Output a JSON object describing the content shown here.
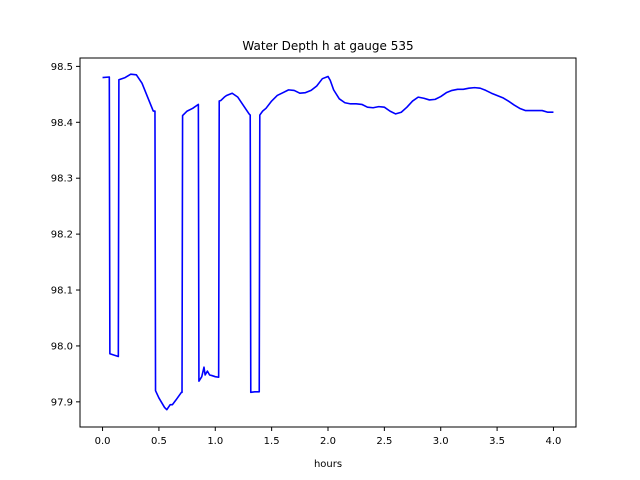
{
  "chart_data": {
    "type": "line",
    "title": "Water Depth h at gauge 535",
    "xlabel": "hours",
    "ylabel": "",
    "xlim": [
      -0.2,
      4.2
    ],
    "ylim": [
      97.855,
      98.515
    ],
    "xticks": [
      0.0,
      0.5,
      1.0,
      1.5,
      2.0,
      2.5,
      3.0,
      3.5,
      4.0
    ],
    "xtick_labels": [
      "0.0",
      "0.5",
      "1.0",
      "1.5",
      "2.0",
      "2.5",
      "3.0",
      "3.5",
      "4.0"
    ],
    "yticks": [
      97.9,
      98.0,
      98.1,
      98.2,
      98.3,
      98.4,
      98.5
    ],
    "ytick_labels": [
      "97.9",
      "98.0",
      "98.1",
      "98.2",
      "98.3",
      "98.4",
      "98.5"
    ],
    "grid": false,
    "series": [
      {
        "color": "#0000ff",
        "x": [
          0.0,
          0.06,
          0.065,
          0.14,
          0.145,
          0.2,
          0.25,
          0.3,
          0.35,
          0.4,
          0.45,
          0.465,
          0.47,
          0.5,
          0.55,
          0.57,
          0.6,
          0.62,
          0.65,
          0.7,
          0.705,
          0.71,
          0.75,
          0.8,
          0.85,
          0.855,
          0.88,
          0.9,
          0.91,
          0.93,
          0.95,
          0.97,
          1.0,
          1.03,
          1.035,
          1.05,
          1.08,
          1.1,
          1.15,
          1.2,
          1.25,
          1.3,
          1.31,
          1.315,
          1.35,
          1.39,
          1.395,
          1.42,
          1.45,
          1.5,
          1.55,
          1.6,
          1.65,
          1.7,
          1.75,
          1.8,
          1.85,
          1.9,
          1.95,
          2.0,
          2.02,
          2.05,
          2.1,
          2.15,
          2.2,
          2.25,
          2.3,
          2.35,
          2.4,
          2.45,
          2.5,
          2.55,
          2.6,
          2.65,
          2.7,
          2.75,
          2.8,
          2.85,
          2.9,
          2.95,
          3.0,
          3.05,
          3.1,
          3.15,
          3.2,
          3.25,
          3.3,
          3.35,
          3.4,
          3.45,
          3.5,
          3.55,
          3.6,
          3.65,
          3.7,
          3.75,
          3.8,
          3.85,
          3.9,
          3.95,
          4.0
        ],
        "y": [
          98.48,
          98.481,
          97.986,
          97.981,
          98.476,
          98.48,
          98.486,
          98.485,
          98.47,
          98.445,
          98.42,
          98.42,
          97.92,
          97.907,
          97.89,
          97.886,
          97.895,
          97.895,
          97.903,
          97.917,
          97.917,
          98.412,
          98.42,
          98.425,
          98.432,
          97.937,
          97.945,
          97.962,
          97.948,
          97.955,
          97.948,
          97.947,
          97.945,
          97.944,
          98.438,
          98.439,
          98.445,
          98.448,
          98.452,
          98.445,
          98.43,
          98.415,
          98.413,
          97.917,
          97.918,
          97.918,
          98.413,
          98.42,
          98.425,
          98.438,
          98.448,
          98.453,
          98.458,
          98.457,
          98.452,
          98.453,
          98.457,
          98.465,
          98.478,
          98.482,
          98.475,
          98.458,
          98.442,
          98.435,
          98.433,
          98.433,
          98.432,
          98.427,
          98.426,
          98.428,
          98.427,
          98.42,
          98.415,
          98.418,
          98.427,
          98.438,
          98.445,
          98.443,
          98.44,
          98.441,
          98.446,
          98.453,
          98.457,
          98.459,
          98.459,
          98.461,
          98.462,
          98.461,
          98.457,
          98.452,
          98.448,
          98.444,
          98.438,
          98.431,
          98.425,
          98.421,
          98.421,
          98.421,
          98.421,
          98.418,
          98.418
        ]
      }
    ]
  }
}
